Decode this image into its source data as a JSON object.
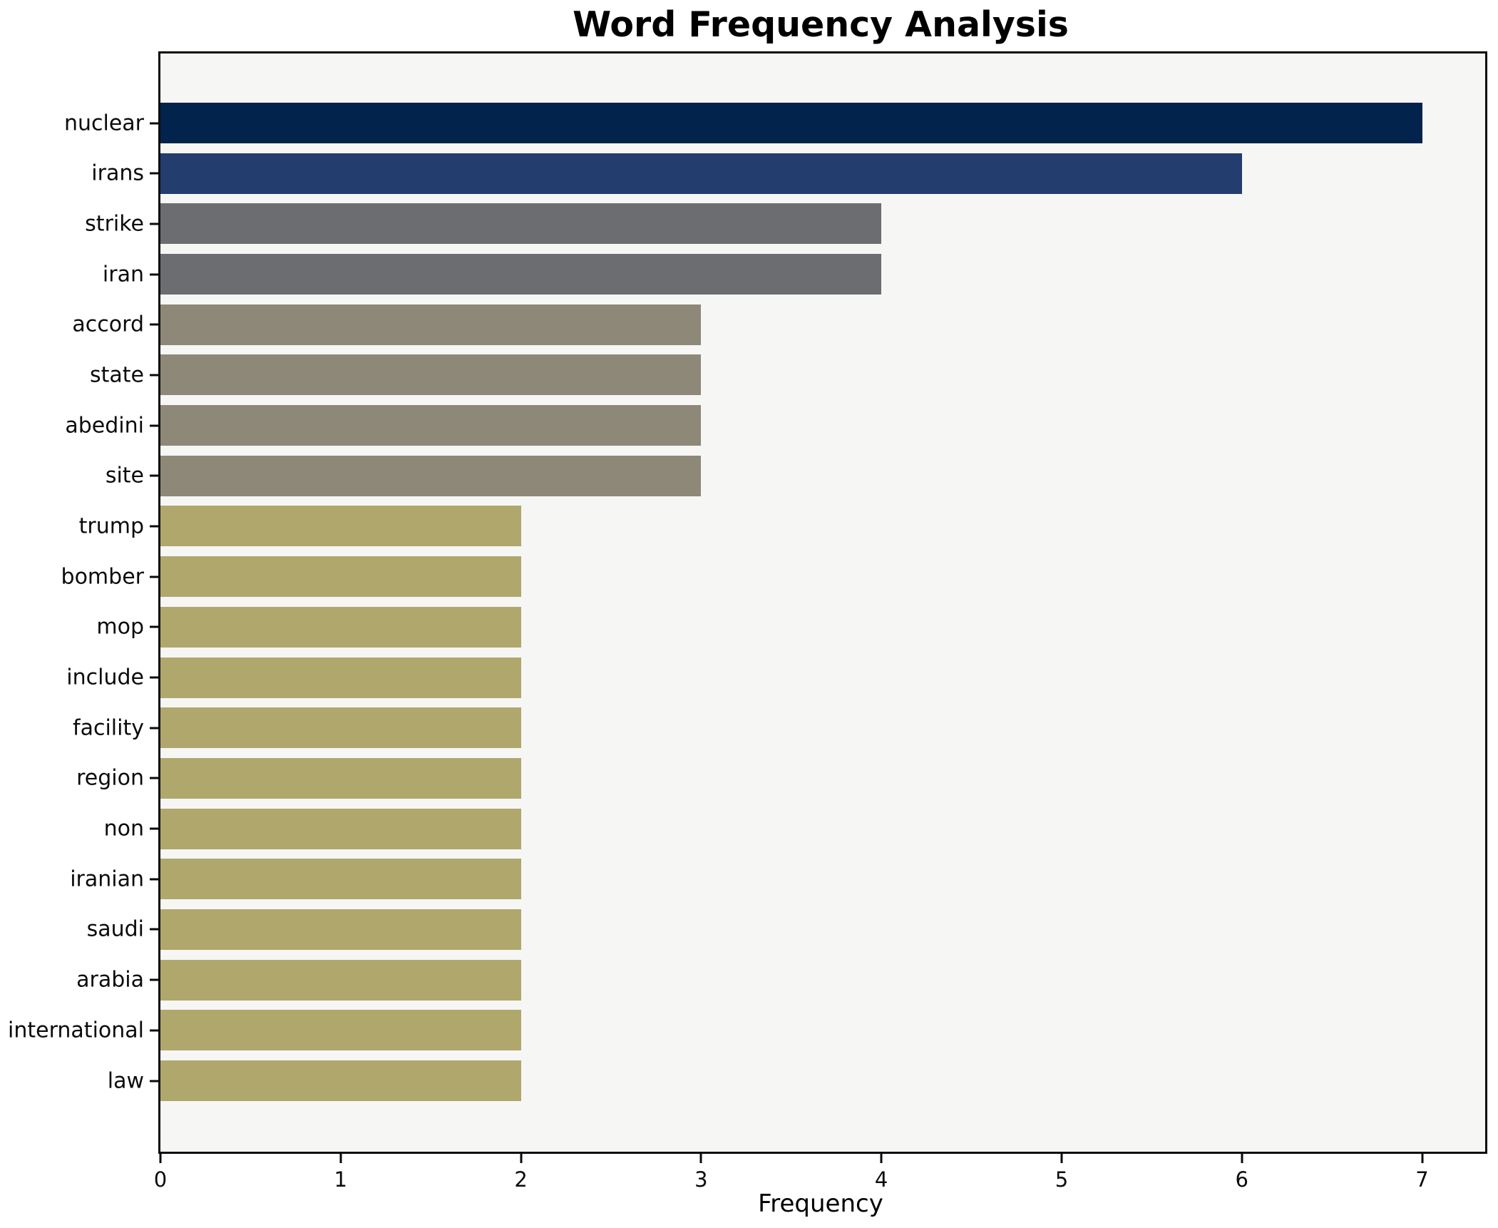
{
  "figure": {
    "background": "#ffffff"
  },
  "chart_data": {
    "type": "bar",
    "orientation": "horizontal",
    "title": "Word Frequency Analysis",
    "xlabel": "Frequency",
    "ylabel": "",
    "categories": [
      "nuclear",
      "irans",
      "strike",
      "iran",
      "accord",
      "state",
      "abedini",
      "site",
      "trump",
      "bomber",
      "mop",
      "include",
      "facility",
      "region",
      "non",
      "iranian",
      "saudi",
      "arabia",
      "international",
      "law"
    ],
    "values": [
      7,
      6,
      4,
      4,
      3,
      3,
      3,
      3,
      2,
      2,
      2,
      2,
      2,
      2,
      2,
      2,
      2,
      2,
      2,
      2
    ],
    "bar_colors": [
      "#02234c",
      "#233d6e",
      "#6c6d71",
      "#6c6d71",
      "#8e8878",
      "#8e8878",
      "#8e8878",
      "#8e8878",
      "#b0a76d",
      "#b0a76d",
      "#b0a76d",
      "#b0a76d",
      "#b0a76d",
      "#b0a76d",
      "#b0a76d",
      "#b0a76d",
      "#b0a76d",
      "#b0a76d",
      "#b0a76d",
      "#b0a76d"
    ],
    "xlim": [
      0,
      7.35
    ],
    "xticks": [
      0,
      1,
      2,
      3,
      4,
      5,
      6,
      7
    ],
    "grid": false,
    "legend_position": "none",
    "plot_background": "#f6f6f5",
    "axis_color": "#0b0b0b"
  }
}
